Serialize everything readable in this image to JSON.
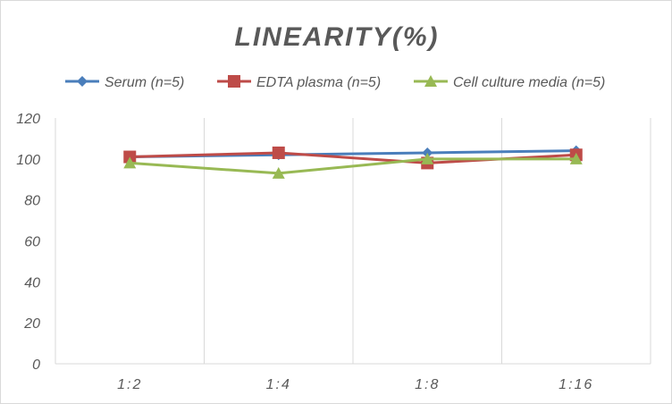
{
  "chart_data": {
    "type": "line",
    "title": "LINEARITY(%)",
    "categories": [
      "1:2",
      "1:4",
      "1:8",
      "1:16"
    ],
    "ylim": [
      0,
      120
    ],
    "yticks": [
      0,
      20,
      40,
      60,
      80,
      100,
      120
    ],
    "grid": "vertical",
    "legend": "top",
    "series": [
      {
        "name": "Serum (n=5)",
        "values": [
          101,
          102,
          103,
          104
        ],
        "color": "#4a7ebb",
        "marker": "diamond"
      },
      {
        "name": "EDTA plasma (n=5)",
        "values": [
          101,
          103,
          98,
          102
        ],
        "color": "#be4b48",
        "marker": "square"
      },
      {
        "name": "Cell culture media (n=5)",
        "values": [
          98,
          93,
          100,
          100
        ],
        "color": "#98b954",
        "marker": "triangle"
      }
    ]
  }
}
